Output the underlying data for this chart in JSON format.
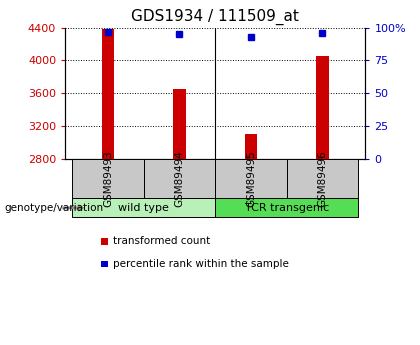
{
  "title": "GDS1934 / 111509_at",
  "samples": [
    "GSM89493",
    "GSM89494",
    "GSM89495",
    "GSM89496"
  ],
  "red_values": [
    4380,
    3650,
    3100,
    4050
  ],
  "blue_values": [
    97,
    95,
    93,
    96
  ],
  "ylim_left": [
    2800,
    4400
  ],
  "ylim_right": [
    0,
    100
  ],
  "yticks_left": [
    2800,
    3200,
    3600,
    4000,
    4400
  ],
  "yticks_right": [
    0,
    25,
    50,
    75,
    100
  ],
  "ytick_labels_right": [
    "0",
    "25",
    "50",
    "75",
    "100%"
  ],
  "groups": [
    {
      "label": "wild type",
      "indices": [
        0,
        1
      ],
      "color": "#b8f0b8"
    },
    {
      "label": "TCR transgenic",
      "indices": [
        2,
        3
      ],
      "color": "#55dd55"
    }
  ],
  "bar_color": "#cc0000",
  "dot_color": "#0000cc",
  "bar_width": 0.18,
  "sample_box_color": "#c8c8c8",
  "legend_red_label": "transformed count",
  "legend_blue_label": "percentile rank within the sample",
  "genotype_label": "genotype/variation",
  "title_fontsize": 11,
  "tick_fontsize": 8,
  "sample_fontsize": 7.5,
  "group_fontsize": 8,
  "legend_fontsize": 7.5
}
